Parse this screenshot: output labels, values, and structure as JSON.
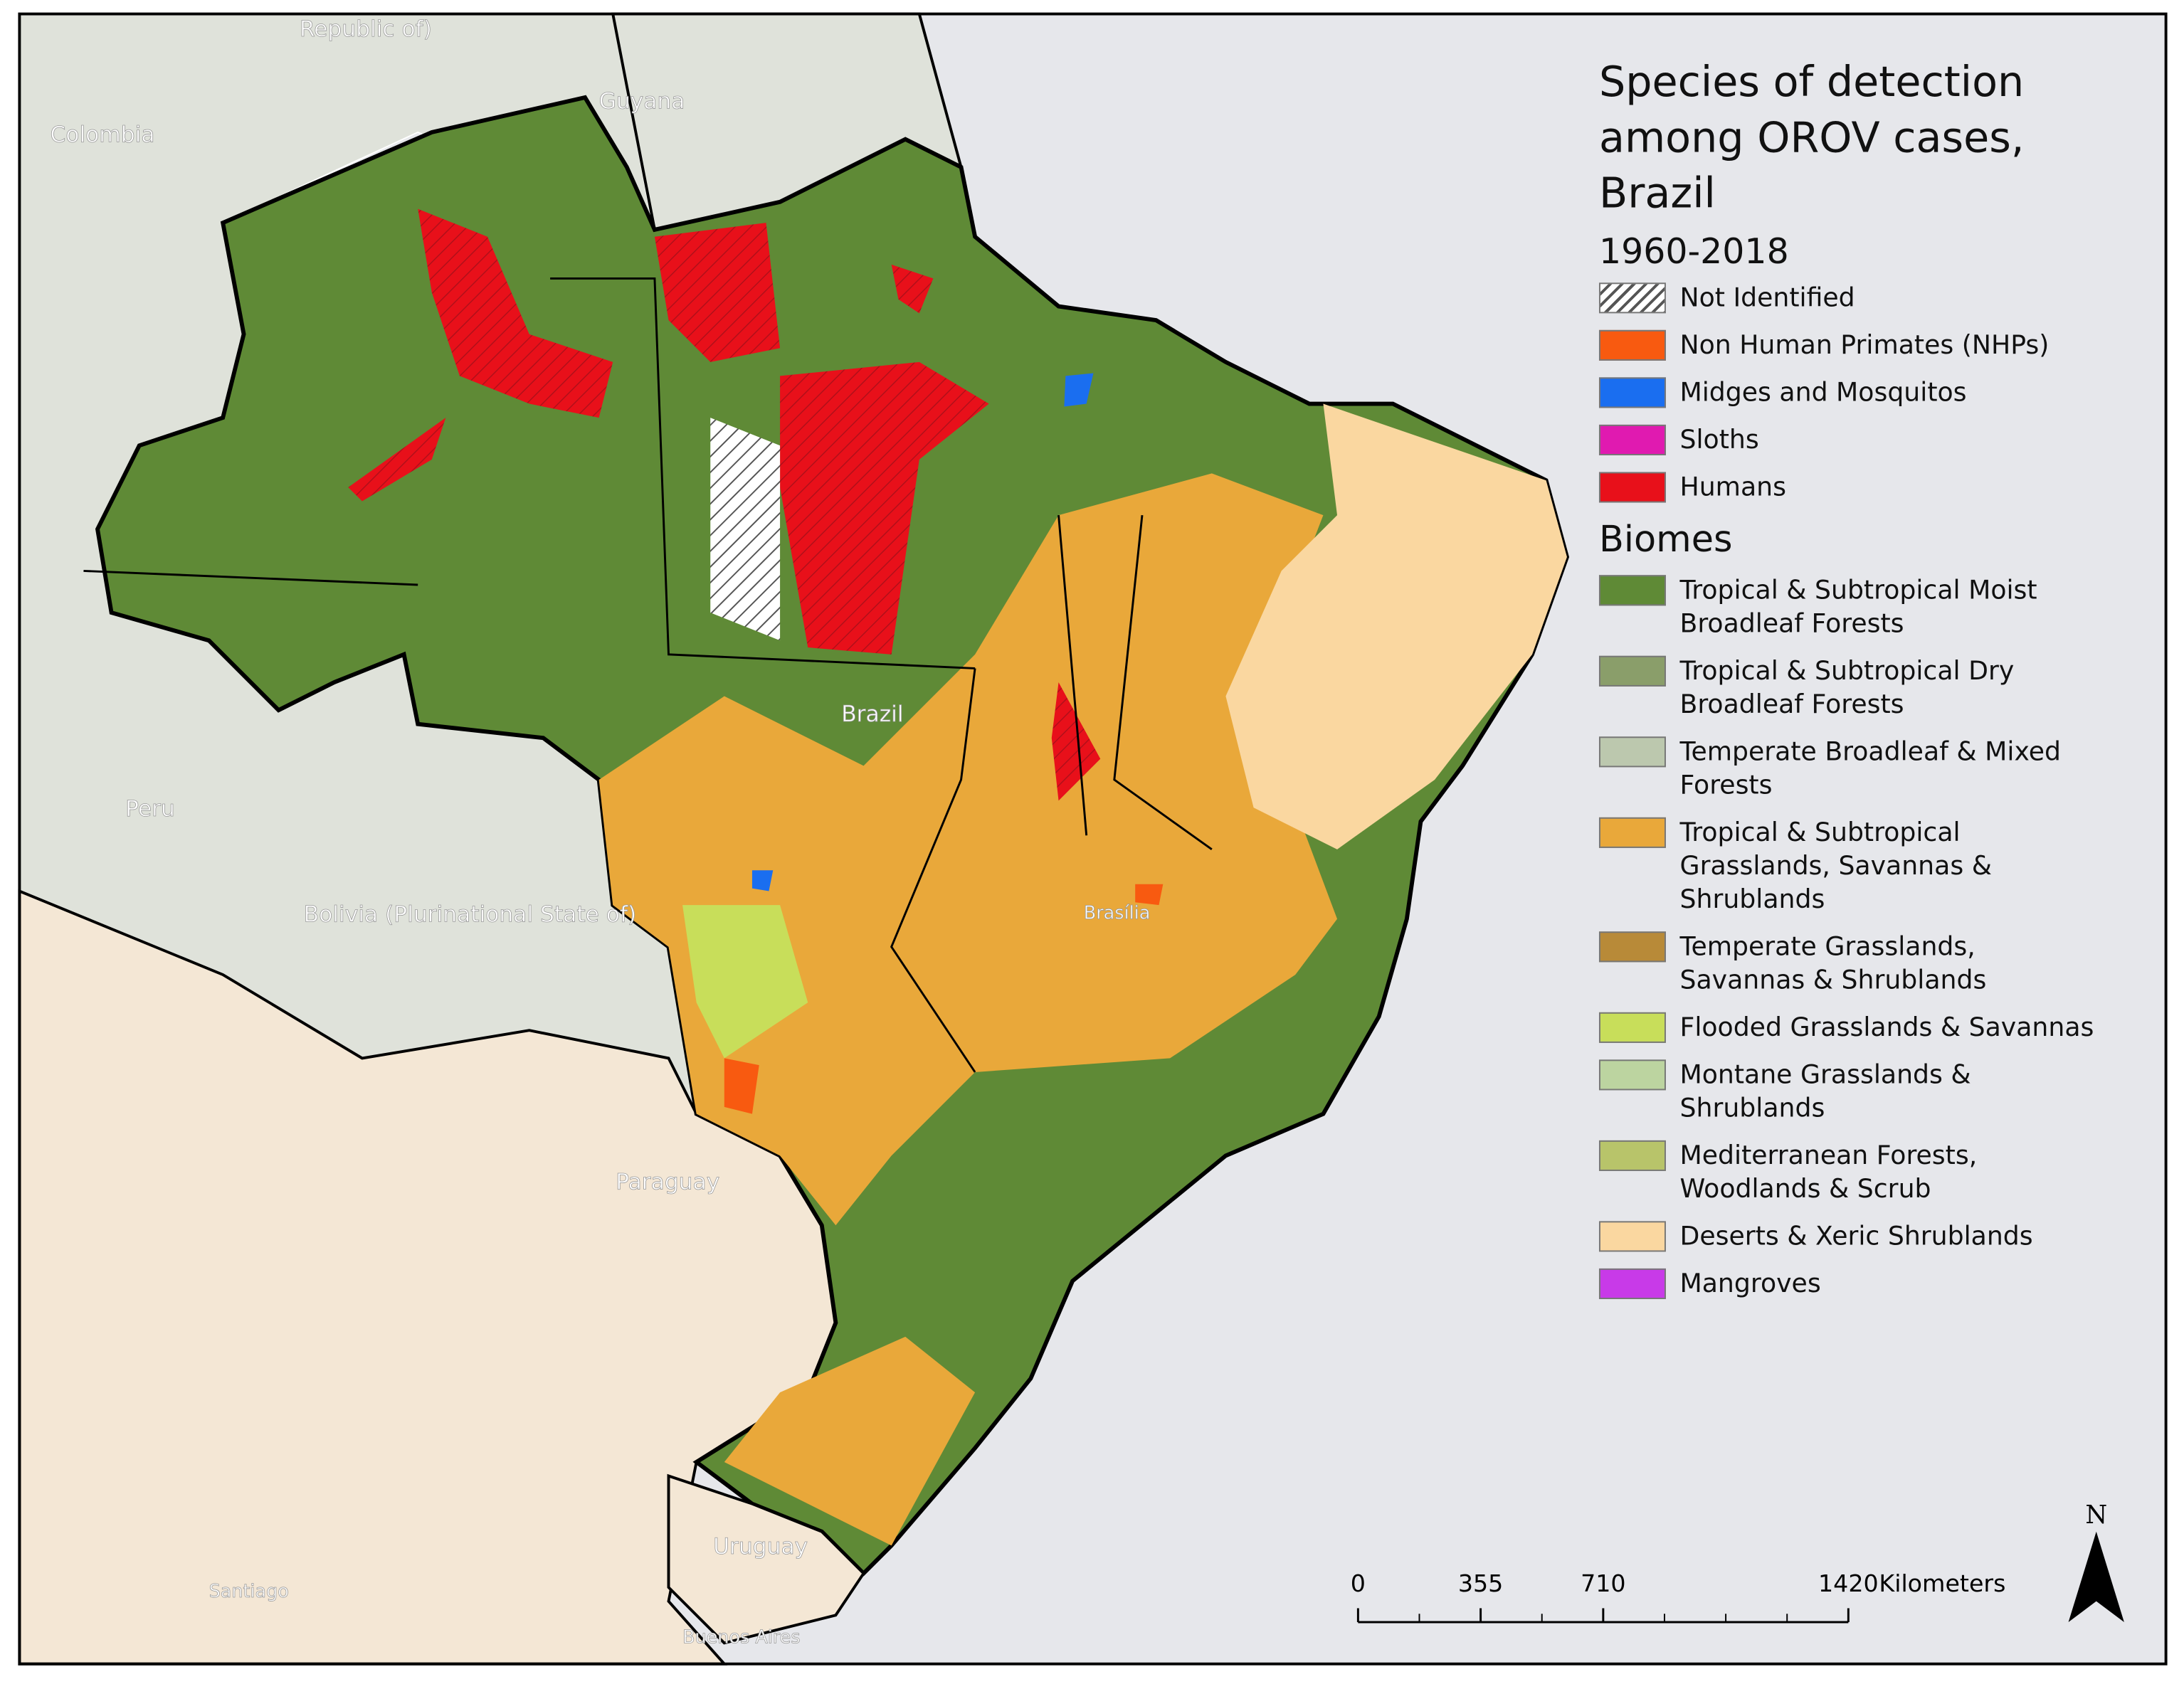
{
  "map": {
    "title": "Species of detection among OROV cases, Brazil",
    "subtitle": "1960-2018",
    "species": [
      {
        "name": "Not Identified",
        "color": "#ffffff",
        "pattern": "hatch"
      },
      {
        "name": "Non Human Primates (NHPs)",
        "color": "#f85a10"
      },
      {
        "name": "Midges and Mosquitos",
        "color": "#1a6ef0"
      },
      {
        "name": "Sloths",
        "color": "#e01ab0"
      },
      {
        "name": "Humans",
        "color": "#e8101a"
      }
    ],
    "biomes_title": "Biomes",
    "biomes": [
      {
        "name": "Tropical & Subtropical Moist Broadleaf Forests",
        "color": "#5f8a36"
      },
      {
        "name": "Tropical & Subtropical Dry Broadleaf Forests",
        "color": "#8a9e6a"
      },
      {
        "name": "Temperate Broadleaf & Mixed Forests",
        "color": "#bcc8ae"
      },
      {
        "name": "Tropical & Subtropical Grasslands, Savannas & Shrublands",
        "color": "#e9a83a"
      },
      {
        "name": "Temperate Grasslands, Savannas & Shrublands",
        "color": "#b88a38"
      },
      {
        "name": "Flooded Grasslands & Savannas",
        "color": "#c8de5a"
      },
      {
        "name": "Montane Grasslands & Shrublands",
        "color": "#bcd4a0"
      },
      {
        "name": "Mediterranean Forests, Woodlands & Scrub",
        "color": "#b8c46a"
      },
      {
        "name": "Deserts & Xeric Shrublands",
        "color": "#fad7a0"
      },
      {
        "name": "Mangroves",
        "color": "#c83ae8"
      }
    ],
    "place_labels": [
      "Republic of)",
      "Colombia",
      "Guyana",
      "Peru",
      "Bolivia (Plurinational State of)",
      "Brazil",
      "Brasília",
      "Paraguay",
      "Uruguay",
      "Buenos Aires",
      "Santiago"
    ],
    "scale_bar": {
      "ticks": [
        0,
        355,
        710,
        1420
      ],
      "max": 1420,
      "unit": "Kilometers"
    },
    "north": "N"
  }
}
